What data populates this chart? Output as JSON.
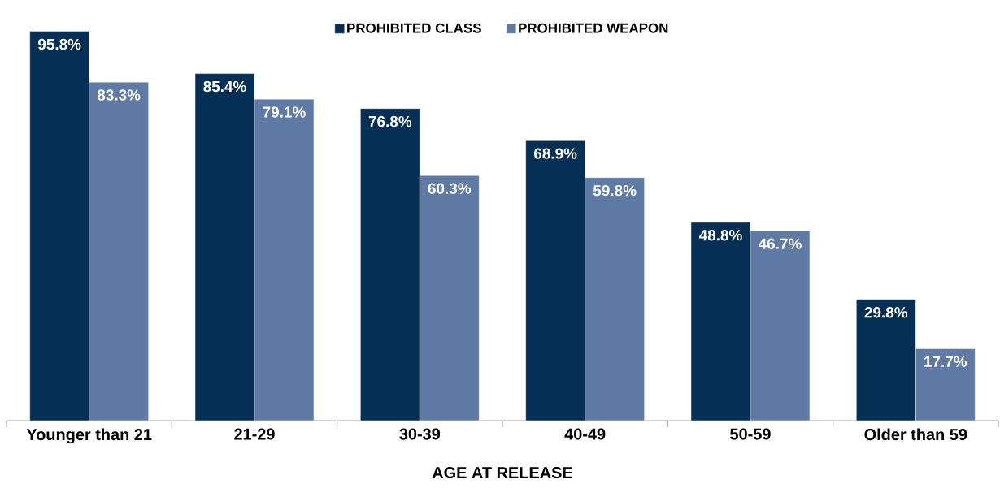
{
  "chart_data": {
    "type": "bar",
    "xlabel": "AGE AT RELEASE",
    "categories": [
      "Younger than 21",
      "21-29",
      "30-39",
      "40-49",
      "50-59",
      "Older than 59"
    ],
    "series": [
      {
        "name": "PROHIBITED CLASS",
        "color": "#062f56",
        "values": [
          95.8,
          85.4,
          76.8,
          68.9,
          48.8,
          29.8
        ],
        "value_labels": [
          "95.8%",
          "85.4%",
          "76.8%",
          "68.9%",
          "48.8%",
          "29.8%"
        ]
      },
      {
        "name": "PROHIBITED WEAPON",
        "color": "#5f7aa5",
        "values": [
          83.3,
          79.1,
          60.3,
          59.8,
          46.7,
          17.7
        ],
        "value_labels": [
          "83.3%",
          "79.1%",
          "60.3%",
          "59.8%",
          "46.7%",
          "17.7%"
        ]
      }
    ],
    "legend": "top"
  }
}
